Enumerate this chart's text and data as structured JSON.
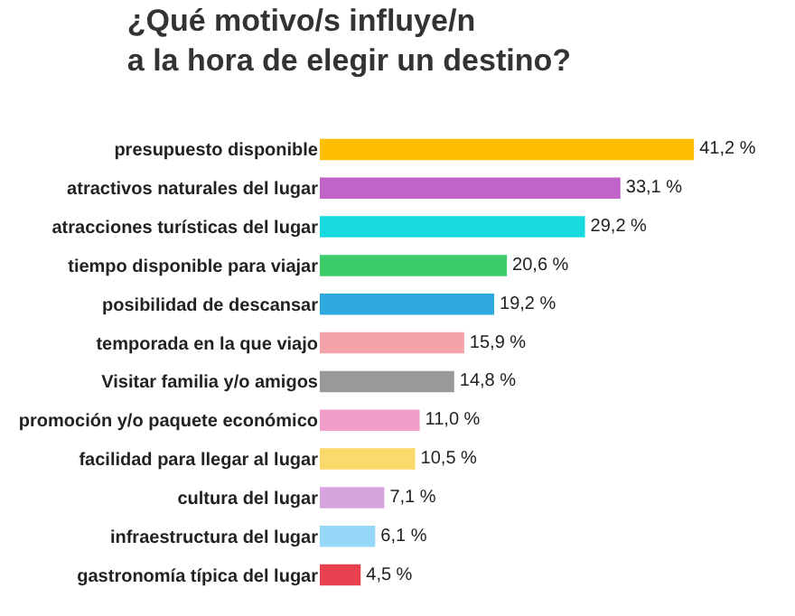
{
  "chart_data": {
    "type": "bar",
    "orientation": "horizontal",
    "title": "¿Qué motivo/s influye/n\na la hora de elegir un destino?",
    "categories": [
      "presupuesto disponible",
      "atractivos naturales del lugar",
      "atracciones turísticas del lugar",
      "tiempo disponible para viajar",
      "posibilidad de descansar",
      "temporada en la que viajo",
      "Visitar familia y/o amigos",
      "promoción y/o paquete económico",
      "facilidad para llegar al lugar",
      "cultura del lugar",
      "infraestructura del lugar",
      "gastronomía típica del lugar"
    ],
    "values": [
      41.2,
      33.1,
      29.2,
      20.6,
      19.2,
      15.9,
      14.8,
      11.0,
      10.5,
      7.1,
      6.1,
      4.5
    ],
    "colors": [
      "#fdbf00",
      "#c064c8",
      "#17dadf",
      "#3dcc6a",
      "#2fa8e0",
      "#f4a3a8",
      "#999999",
      "#f29ecb",
      "#fbd96a",
      "#d8a4e0",
      "#97d8f8",
      "#e8404e"
    ],
    "value_labels": [
      "41,2 %",
      "33,1 %",
      "29,2 %",
      "20,6 %",
      "19,2 %",
      "15,9 %",
      "14,8 %",
      "11,0 %",
      "10,5 %",
      "7,1 %",
      "6,1 %",
      "4,5 %"
    ]
  }
}
